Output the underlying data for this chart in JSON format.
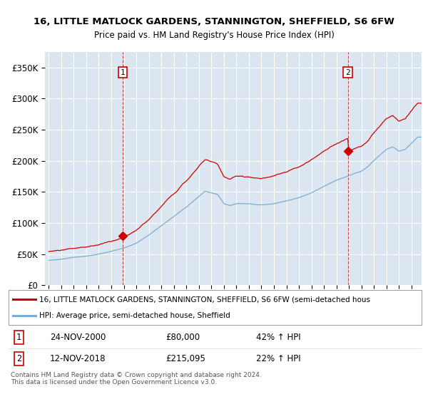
{
  "title": "16, LITTLE MATLOCK GARDENS, STANNINGTON, SHEFFIELD, S6 6FW",
  "subtitle": "Price paid vs. HM Land Registry's House Price Index (HPI)",
  "legend_line1": "16, LITTLE MATLOCK GARDENS, STANNINGTON, SHEFFIELD, S6 6FW (semi-detached hous",
  "legend_line2": "HPI: Average price, semi-detached house, Sheffield",
  "purchase1_date": "24-NOV-2000",
  "purchase1_price": 80000,
  "purchase1_year": 2000.9,
  "purchase1_pct": "42% ↑ HPI",
  "purchase2_date": "12-NOV-2018",
  "purchase2_price": 215095,
  "purchase2_year": 2018.9,
  "purchase2_pct": "22% ↑ HPI",
  "footer": "Contains HM Land Registry data © Crown copyright and database right 2024.\nThis data is licensed under the Open Government Licence v3.0.",
  "red_color": "#cc0000",
  "blue_color": "#7aadcf",
  "bg_color": "#dce6f0",
  "ylim": [
    0,
    375000
  ],
  "yticks": [
    0,
    50000,
    100000,
    150000,
    200000,
    250000,
    300000,
    350000
  ],
  "xlim_start": 1994.7,
  "xlim_end": 2024.8
}
